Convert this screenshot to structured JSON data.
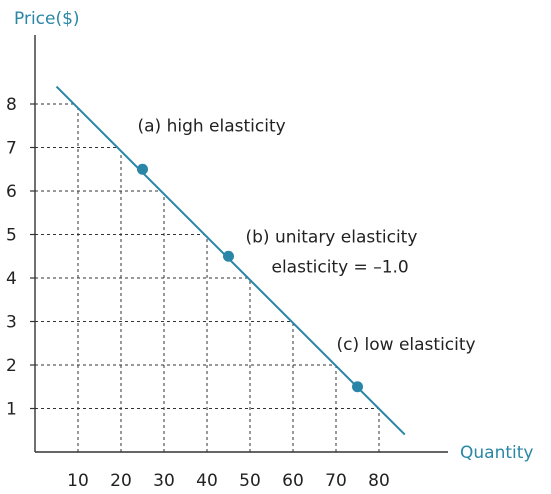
{
  "chart_data": {
    "type": "line",
    "xlabel": "Quantity",
    "ylabel": "Price($)",
    "x_ticks": [
      10,
      20,
      30,
      40,
      50,
      60,
      70,
      80
    ],
    "y_ticks": [
      1,
      2,
      3,
      4,
      5,
      6,
      7,
      8
    ],
    "xlim": [
      0,
      90
    ],
    "ylim": [
      0,
      9
    ],
    "grid": "dashed",
    "series": [
      {
        "x": [
          5,
          86
        ],
        "y": [
          8.4,
          0.4
        ],
        "color": "#2a86a6"
      }
    ],
    "points": [
      {
        "x": 25,
        "y": 6.5,
        "label": "(a) high elasticity"
      },
      {
        "x": 45,
        "y": 4.5,
        "label": "(b) unitary elasticity",
        "sublabel": "elasticity = –1.0"
      },
      {
        "x": 75,
        "y": 1.5,
        "label": "(c) low elasticity"
      }
    ],
    "colors": {
      "curve": "#2a86a6",
      "point": "#2a86a6",
      "axis_title": "#2a86a6",
      "text": "#222222"
    }
  }
}
